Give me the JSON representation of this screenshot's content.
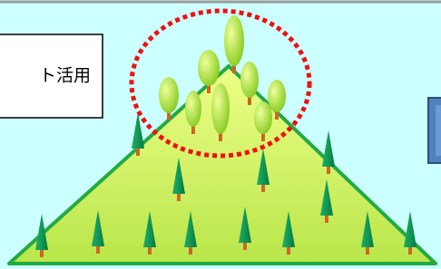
{
  "text_box": {
    "label": "ト活用"
  }
}
